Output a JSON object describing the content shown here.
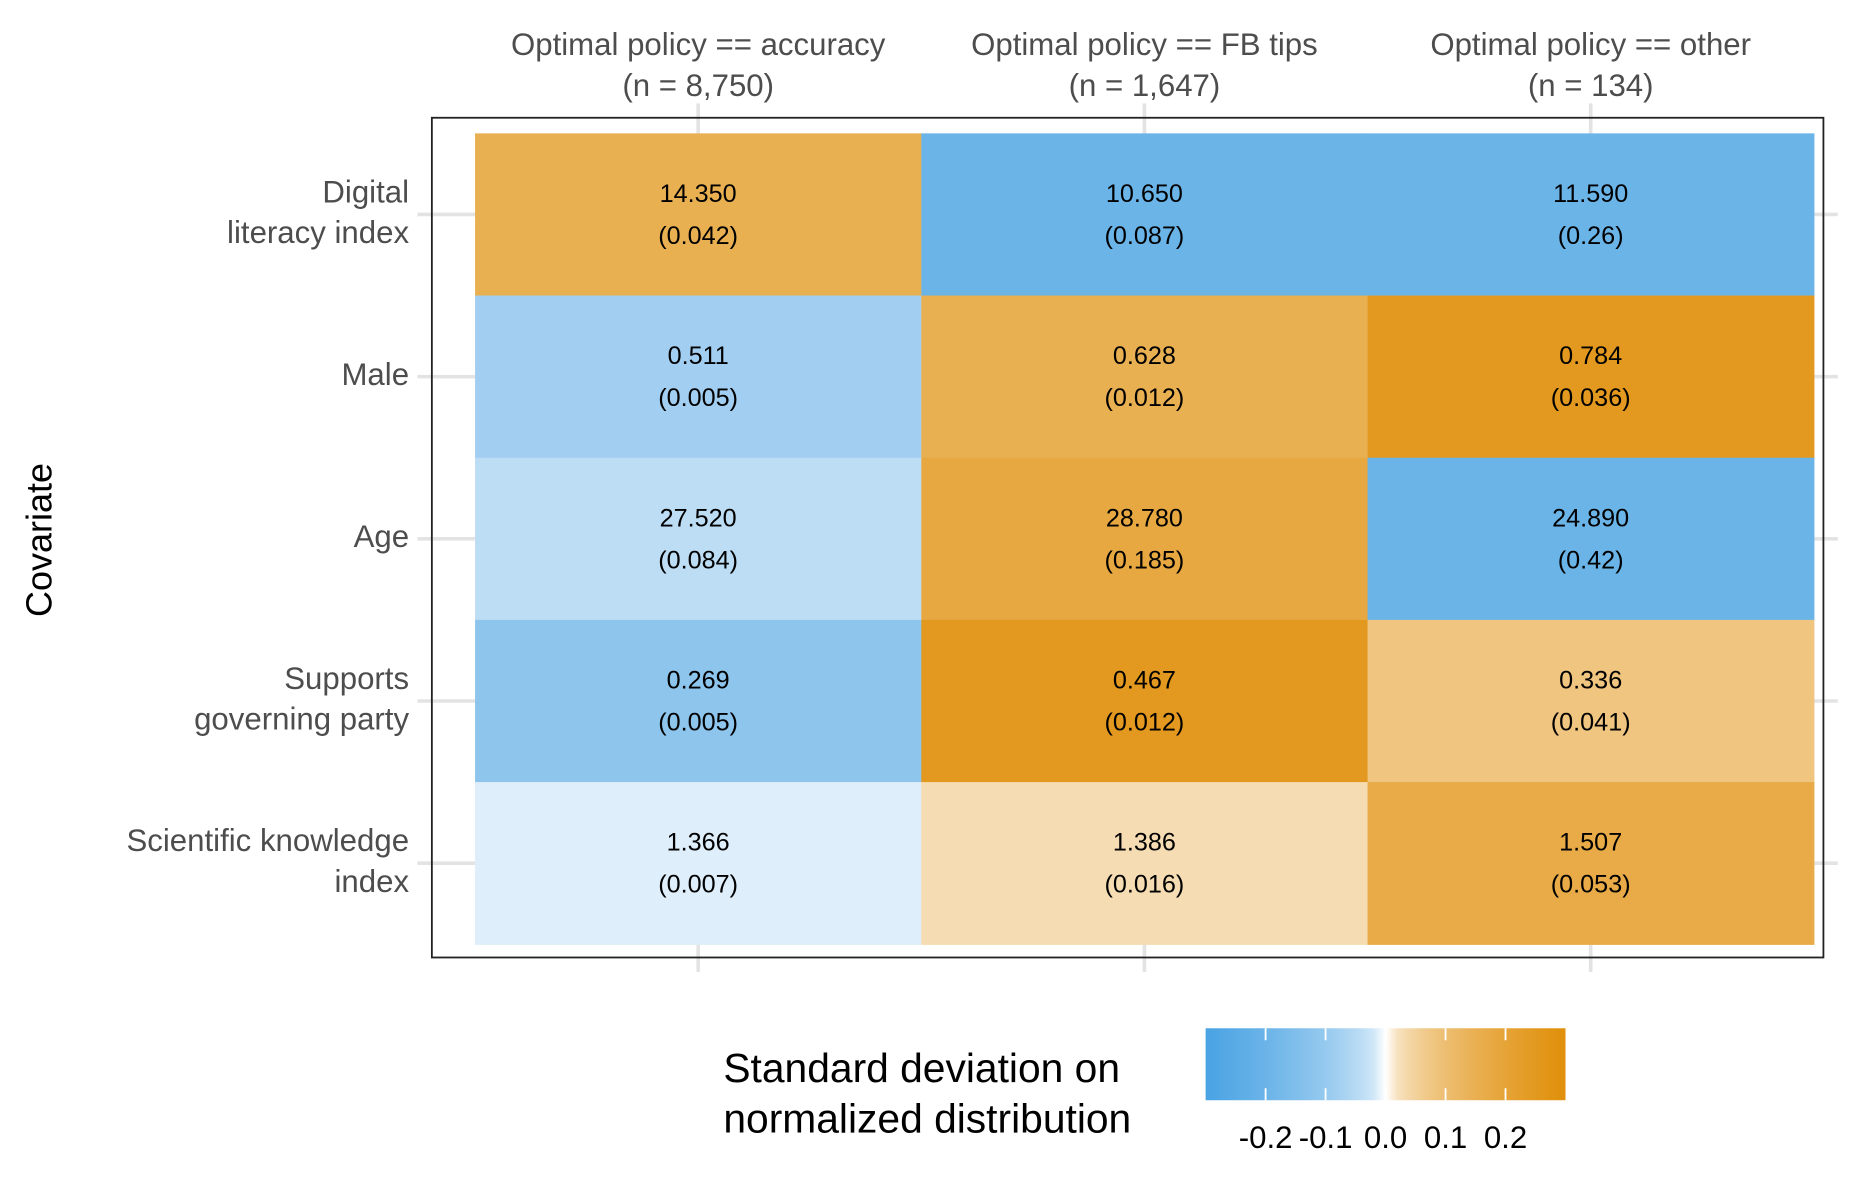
{
  "chart_data": {
    "type": "heatmap",
    "y_label": "Covariate",
    "x_categories": [
      [
        "Optimal policy == accuracy",
        "(n = 8,750)"
      ],
      [
        "Optimal policy == FB tips",
        "(n = 1,647)"
      ],
      [
        "Optimal policy == other",
        "(n = 134)"
      ]
    ],
    "y_categories": [
      [
        "Digital",
        "literacy index"
      ],
      [
        "Male"
      ],
      [
        "Age"
      ],
      [
        "Supports",
        "governing party"
      ],
      [
        "Scientific knowledge",
        "index"
      ]
    ],
    "z": [
      [
        0.15,
        -0.2,
        -0.2
      ],
      [
        -0.08,
        0.15,
        0.25
      ],
      [
        -0.04,
        0.18,
        -0.2
      ],
      [
        -0.12,
        0.25,
        0.08
      ],
      [
        -0.01,
        0.03,
        0.17
      ]
    ],
    "mean_labels": [
      [
        "14.350",
        "10.650",
        "11.590"
      ],
      [
        "0.511",
        "0.628",
        "0.784"
      ],
      [
        "27.520",
        "28.780",
        "24.890"
      ],
      [
        "0.269",
        "0.467",
        "0.336"
      ],
      [
        "1.366",
        "1.386",
        "1.507"
      ]
    ],
    "se_labels": [
      [
        "(0.042)",
        "(0.087)",
        "(0.26)"
      ],
      [
        "(0.005)",
        "(0.012)",
        "(0.036)"
      ],
      [
        "(0.084)",
        "(0.185)",
        "(0.42)"
      ],
      [
        "(0.005)",
        "(0.012)",
        "(0.041)"
      ],
      [
        "(0.007)",
        "(0.016)",
        "(0.053)"
      ]
    ],
    "legend_title": [
      "Standard deviation on",
      "normalized distribution"
    ],
    "zlim": [
      -0.3,
      0.3
    ],
    "zticks": [
      -0.2,
      -0.1,
      {
        "value": 0,
        "label": "0.0"
      },
      0.1,
      0.2
    ],
    "low_color": "#4aa3e3",
    "mid_color": "#ffffff",
    "high_color": "#e08f0a",
    "grid": true
  }
}
